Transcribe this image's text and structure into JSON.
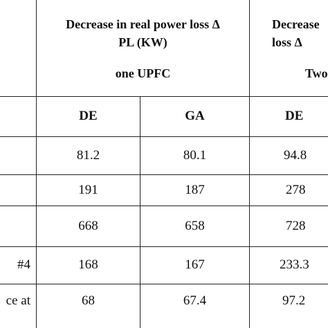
{
  "header": {
    "one_upfc_title": "Decrease in real power loss Δ\nPL (KW)",
    "one_upfc_sub": "one UPFC",
    "two_upfc_title": "Decrease\nloss Δ",
    "two_upfc_sub": "Two"
  },
  "subheaders": [
    "DE",
    "GA",
    "DE"
  ],
  "rows": [
    {
      "label": "",
      "values": [
        "81.2",
        "80.1",
        "94.8"
      ]
    },
    {
      "label": "",
      "values": [
        "191",
        "187",
        "278"
      ]
    },
    {
      "label": "",
      "values": [
        "668",
        "658",
        "728"
      ]
    },
    {
      "label": "#4",
      "values": [
        "168",
        "167",
        "233.3"
      ]
    },
    {
      "label": "ce at",
      "values": [
        "68",
        "67.4",
        "97.2"
      ]
    }
  ]
}
